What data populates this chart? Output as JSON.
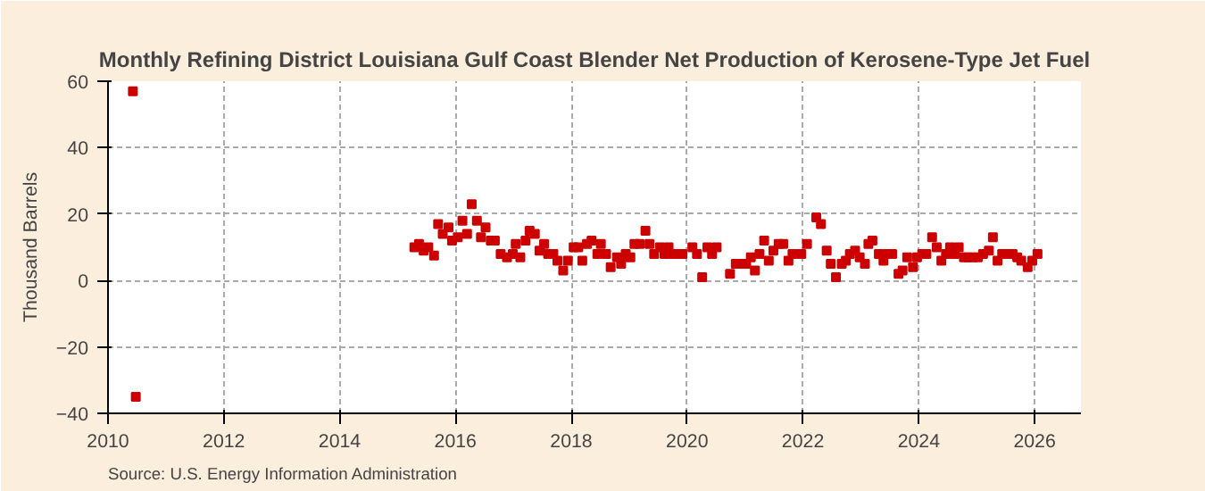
{
  "chart_data": {
    "type": "scatter",
    "title": "Monthly Refining District Louisiana Gulf Coast Blender Net Production of Kerosene-Type Jet Fuel",
    "ylabel": "Thousand Barrels",
    "annotations": [
      "Source: U.S. Energy Information Administration"
    ],
    "marker": "square",
    "grid": true,
    "xlim": [
      2010,
      2026.8
    ],
    "xticks": [
      2010,
      2012,
      2014,
      2016,
      2018,
      2020,
      2022,
      2024,
      2026
    ],
    "ylim": [
      -40,
      60
    ],
    "yticks": [
      -40,
      -20,
      0,
      20,
      40,
      60
    ],
    "series": [
      {
        "color": "#cc0000",
        "x": [
          2010.43,
          2010.48,
          2015.29,
          2015.37,
          2015.45,
          2015.53,
          2015.63,
          2015.7,
          2015.78,
          2015.88,
          2015.94,
          2016.04,
          2016.12,
          2016.2,
          2016.28,
          2016.37,
          2016.44,
          2016.52,
          2016.61,
          2016.68,
          2016.78,
          2016.89,
          2016.99,
          2017.04,
          2017.12,
          2017.21,
          2017.28,
          2017.37,
          2017.45,
          2017.53,
          2017.6,
          2017.69,
          2017.76,
          2017.86,
          2017.94,
          2018.04,
          2018.12,
          2018.19,
          2018.27,
          2018.35,
          2018.45,
          2018.51,
          2018.6,
          2018.68,
          2018.79,
          2018.86,
          2018.94,
          2019.02,
          2019.09,
          2019.18,
          2019.28,
          2019.35,
          2019.43,
          2019.53,
          2019.61,
          2019.68,
          2019.76,
          2019.84,
          2019.92,
          2020.09,
          2020.17,
          2020.26,
          2020.35,
          2020.43,
          2020.51,
          2020.74,
          2020.84,
          2020.92,
          2021.02,
          2021.1,
          2021.17,
          2021.25,
          2021.33,
          2021.41,
          2021.49,
          2021.58,
          2021.66,
          2021.75,
          2021.82,
          2021.97,
          2022.07,
          2022.23,
          2022.31,
          2022.41,
          2022.48,
          2022.57,
          2022.67,
          2022.74,
          2022.81,
          2022.9,
          2022.98,
          2023.07,
          2023.13,
          2023.2,
          2023.31,
          2023.39,
          2023.46,
          2023.54,
          2023.65,
          2023.72,
          2023.8,
          2023.9,
          2023.97,
          2024.06,
          2024.13,
          2024.23,
          2024.31,
          2024.39,
          2024.47,
          2024.54,
          2024.62,
          2024.69,
          2024.78,
          2024.85,
          2024.93,
          2025.02,
          2025.11,
          2025.21,
          2025.28,
          2025.36,
          2025.44,
          2025.52,
          2025.62,
          2025.7,
          2025.77,
          2025.88,
          2025.96,
          2026.05
        ],
        "values": [
          57,
          -35,
          10,
          11,
          9,
          10,
          7.5,
          17,
          14,
          16,
          12,
          13,
          18,
          14,
          23,
          18,
          13,
          16,
          12,
          12,
          8,
          7,
          8,
          11,
          7,
          12,
          15,
          14,
          9,
          11,
          8,
          8,
          6,
          3,
          6,
          10,
          10,
          6,
          11,
          12,
          8,
          11,
          8,
          4,
          7,
          5,
          8,
          7,
          11,
          11,
          15,
          11,
          8,
          10,
          8,
          10,
          8,
          8,
          8,
          10,
          8,
          1,
          10,
          8,
          10,
          2,
          5,
          5,
          5,
          7,
          3,
          8,
          12,
          6,
          9,
          11,
          11,
          6,
          8,
          8,
          11,
          19,
          17,
          9,
          5,
          1,
          5,
          6,
          8,
          9,
          7,
          5,
          11,
          12,
          8,
          6,
          8,
          8,
          2,
          3,
          7,
          4,
          7,
          8,
          8,
          13,
          10,
          6,
          8,
          10,
          8,
          10,
          7,
          7,
          7,
          7,
          8,
          9,
          13,
          6,
          8,
          8,
          8,
          7,
          6,
          4,
          6,
          8
        ]
      }
    ]
  }
}
